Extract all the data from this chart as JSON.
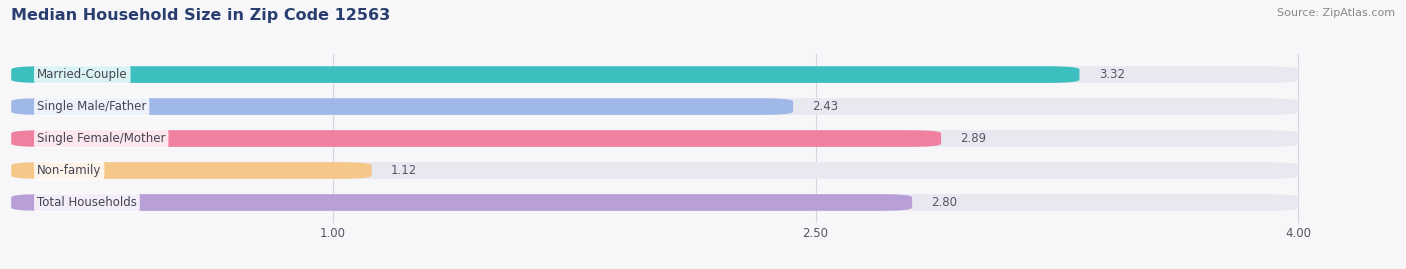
{
  "title": "Median Household Size in Zip Code 12563",
  "source": "Source: ZipAtlas.com",
  "categories": [
    "Married-Couple",
    "Single Male/Father",
    "Single Female/Mother",
    "Non-family",
    "Total Households"
  ],
  "values": [
    3.32,
    2.43,
    2.89,
    1.12,
    2.8
  ],
  "bar_colors": [
    "#3dbfbf",
    "#a0b8e8",
    "#f080a0",
    "#f5c88a",
    "#b89fd8"
  ],
  "bar_bg_color": "#e8e8f0",
  "xlim": [
    0,
    4.3
  ],
  "xmin": 0,
  "xmax": 4.0,
  "xticks": [
    1.0,
    2.5,
    4.0
  ],
  "xtick_labels": [
    "1.00",
    "2.50",
    "4.00"
  ],
  "title_color": "#2a3f6f",
  "title_fontsize": 11.5,
  "label_fontsize": 8.5,
  "value_fontsize": 8.5,
  "bar_height": 0.52,
  "background_color": "#f7f7fa",
  "source_color": "#888888",
  "source_fontsize": 8,
  "grid_color": "#d5d5dd",
  "value_color": "#555566",
  "label_color": "#444455"
}
